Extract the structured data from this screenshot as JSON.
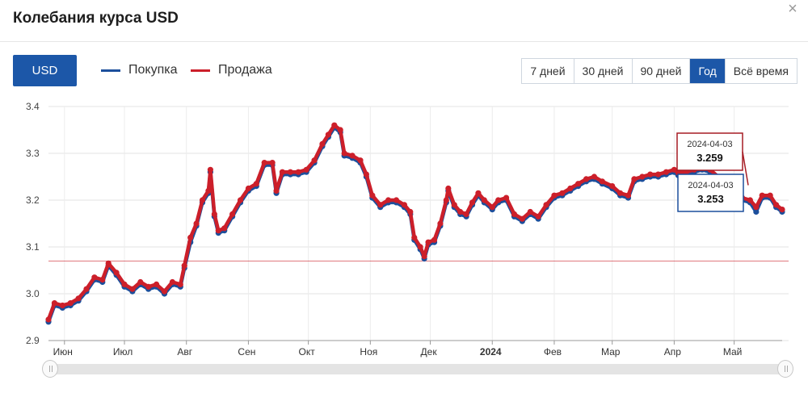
{
  "header": {
    "title": "Колебания курса USD"
  },
  "controls": {
    "currency_label": "USD",
    "legend": [
      {
        "label": "Покупка",
        "color": "#1c4f9c"
      },
      {
        "label": "Продажа",
        "color": "#cc1f2a"
      }
    ],
    "periods": [
      {
        "label": "7 дней",
        "active": false
      },
      {
        "label": "30 дней",
        "active": false
      },
      {
        "label": "90 дней",
        "active": false
      },
      {
        "label": "Год",
        "active": true
      },
      {
        "label": "Всё время",
        "active": false
      }
    ]
  },
  "chart_data": {
    "type": "line",
    "x_range": [
      "2023-05-24",
      "2024-05-25"
    ],
    "ylim": [
      2.9,
      3.4
    ],
    "y_ticks": [
      "2.9",
      "3.0",
      "3.1",
      "3.2",
      "3.3",
      "3.4"
    ],
    "x_ticks": [
      {
        "label": "Июн",
        "date": "2023-06-01",
        "bold": false
      },
      {
        "label": "Июл",
        "date": "2023-07-01",
        "bold": false
      },
      {
        "label": "Авг",
        "date": "2023-08-01",
        "bold": false
      },
      {
        "label": "Сен",
        "date": "2023-09-01",
        "bold": false
      },
      {
        "label": "Окт",
        "date": "2023-10-01",
        "bold": false
      },
      {
        "label": "Ноя",
        "date": "2023-11-01",
        "bold": false
      },
      {
        "label": "Дек",
        "date": "2023-12-01",
        "bold": false
      },
      {
        "label": "2024",
        "date": "2024-01-01",
        "bold": true
      },
      {
        "label": "Фев",
        "date": "2024-02-01",
        "bold": false
      },
      {
        "label": "Мар",
        "date": "2024-03-01",
        "bold": false
      },
      {
        "label": "Апр",
        "date": "2024-04-01",
        "bold": false
      },
      {
        "label": "Май",
        "date": "2024-05-01",
        "bold": false
      }
    ],
    "reference_line": {
      "y": 3.07,
      "color": "#cc1f2a"
    },
    "series": [
      {
        "name": "Продажа",
        "color": "#cc1f2a",
        "points": [
          [
            "2023-05-24",
            2.945
          ],
          [
            "2023-05-27",
            2.98
          ],
          [
            "2023-05-31",
            2.975
          ],
          [
            "2023-06-04",
            2.98
          ],
          [
            "2023-06-08",
            2.99
          ],
          [
            "2023-06-12",
            3.01
          ],
          [
            "2023-06-16",
            3.035
          ],
          [
            "2023-06-20",
            3.03
          ],
          [
            "2023-06-23",
            3.065
          ],
          [
            "2023-06-27",
            3.045
          ],
          [
            "2023-07-01",
            3.02
          ],
          [
            "2023-07-05",
            3.01
          ],
          [
            "2023-07-09",
            3.025
          ],
          [
            "2023-07-13",
            3.015
          ],
          [
            "2023-07-17",
            3.02
          ],
          [
            "2023-07-21",
            3.005
          ],
          [
            "2023-07-25",
            3.025
          ],
          [
            "2023-07-29",
            3.02
          ],
          [
            "2023-07-31",
            3.06
          ],
          [
            "2023-08-03",
            3.12
          ],
          [
            "2023-08-06",
            3.15
          ],
          [
            "2023-08-09",
            3.2
          ],
          [
            "2023-08-12",
            3.22
          ],
          [
            "2023-08-13",
            3.265
          ],
          [
            "2023-08-15",
            3.17
          ],
          [
            "2023-08-17",
            3.135
          ],
          [
            "2023-08-20",
            3.14
          ],
          [
            "2023-08-24",
            3.17
          ],
          [
            "2023-08-28",
            3.2
          ],
          [
            "2023-09-01",
            3.225
          ],
          [
            "2023-09-05",
            3.235
          ],
          [
            "2023-09-09",
            3.28
          ],
          [
            "2023-09-13",
            3.28
          ],
          [
            "2023-09-15",
            3.22
          ],
          [
            "2023-09-18",
            3.26
          ],
          [
            "2023-09-22",
            3.26
          ],
          [
            "2023-09-26",
            3.26
          ],
          [
            "2023-09-30",
            3.265
          ],
          [
            "2023-10-04",
            3.285
          ],
          [
            "2023-10-08",
            3.32
          ],
          [
            "2023-10-11",
            3.34
          ],
          [
            "2023-10-14",
            3.36
          ],
          [
            "2023-10-17",
            3.35
          ],
          [
            "2023-10-19",
            3.3
          ],
          [
            "2023-10-23",
            3.295
          ],
          [
            "2023-10-27",
            3.285
          ],
          [
            "2023-10-30",
            3.255
          ],
          [
            "2023-11-02",
            3.21
          ],
          [
            "2023-11-06",
            3.19
          ],
          [
            "2023-11-10",
            3.2
          ],
          [
            "2023-11-14",
            3.2
          ],
          [
            "2023-11-18",
            3.19
          ],
          [
            "2023-11-21",
            3.175
          ],
          [
            "2023-11-23",
            3.12
          ],
          [
            "2023-11-26",
            3.1
          ],
          [
            "2023-11-28",
            3.08
          ],
          [
            "2023-11-30",
            3.11
          ],
          [
            "2023-12-03",
            3.115
          ],
          [
            "2023-12-06",
            3.15
          ],
          [
            "2023-12-09",
            3.2
          ],
          [
            "2023-12-10",
            3.225
          ],
          [
            "2023-12-13",
            3.19
          ],
          [
            "2023-12-16",
            3.175
          ],
          [
            "2023-12-19",
            3.17
          ],
          [
            "2023-12-22",
            3.195
          ],
          [
            "2023-12-25",
            3.215
          ],
          [
            "2023-12-28",
            3.2
          ],
          [
            "2024-01-01",
            3.185
          ],
          [
            "2024-01-04",
            3.2
          ],
          [
            "2024-01-08",
            3.205
          ],
          [
            "2024-01-12",
            3.17
          ],
          [
            "2024-01-16",
            3.16
          ],
          [
            "2024-01-20",
            3.175
          ],
          [
            "2024-01-24",
            3.165
          ],
          [
            "2024-01-28",
            3.19
          ],
          [
            "2024-02-01",
            3.21
          ],
          [
            "2024-02-05",
            3.215
          ],
          [
            "2024-02-09",
            3.225
          ],
          [
            "2024-02-13",
            3.235
          ],
          [
            "2024-02-17",
            3.245
          ],
          [
            "2024-02-21",
            3.25
          ],
          [
            "2024-02-25",
            3.24
          ],
          [
            "2024-03-01",
            3.23
          ],
          [
            "2024-03-05",
            3.215
          ],
          [
            "2024-03-09",
            3.21
          ],
          [
            "2024-03-12",
            3.245
          ],
          [
            "2024-03-16",
            3.25
          ],
          [
            "2024-03-20",
            3.255
          ],
          [
            "2024-03-24",
            3.255
          ],
          [
            "2024-03-28",
            3.26
          ],
          [
            "2024-04-01",
            3.265
          ],
          [
            "2024-04-03",
            3.259
          ],
          [
            "2024-04-07",
            3.26
          ],
          [
            "2024-04-11",
            3.265
          ],
          [
            "2024-04-15",
            3.27
          ],
          [
            "2024-04-19",
            3.265
          ],
          [
            "2024-04-23",
            3.25
          ],
          [
            "2024-04-27",
            3.23
          ],
          [
            "2024-05-01",
            3.22
          ],
          [
            "2024-05-05",
            3.205
          ],
          [
            "2024-05-09",
            3.2
          ],
          [
            "2024-05-12",
            3.185
          ],
          [
            "2024-05-15",
            3.21
          ],
          [
            "2024-05-19",
            3.21
          ],
          [
            "2024-05-22",
            3.19
          ],
          [
            "2024-05-25",
            3.18
          ]
        ]
      },
      {
        "name": "Покупка",
        "color": "#1c4f9c",
        "points": [
          [
            "2023-05-24",
            2.94
          ],
          [
            "2023-05-27",
            2.975
          ],
          [
            "2023-05-31",
            2.97
          ],
          [
            "2023-06-04",
            2.975
          ],
          [
            "2023-06-08",
            2.985
          ],
          [
            "2023-06-12",
            3.005
          ],
          [
            "2023-06-16",
            3.03
          ],
          [
            "2023-06-20",
            3.025
          ],
          [
            "2023-06-23",
            3.06
          ],
          [
            "2023-06-27",
            3.04
          ],
          [
            "2023-07-01",
            3.015
          ],
          [
            "2023-07-05",
            3.005
          ],
          [
            "2023-07-09",
            3.02
          ],
          [
            "2023-07-13",
            3.01
          ],
          [
            "2023-07-17",
            3.015
          ],
          [
            "2023-07-21",
            3.0
          ],
          [
            "2023-07-25",
            3.02
          ],
          [
            "2023-07-29",
            3.015
          ],
          [
            "2023-07-31",
            3.055
          ],
          [
            "2023-08-03",
            3.11
          ],
          [
            "2023-08-06",
            3.145
          ],
          [
            "2023-08-09",
            3.195
          ],
          [
            "2023-08-12",
            3.215
          ],
          [
            "2023-08-13",
            3.26
          ],
          [
            "2023-08-15",
            3.165
          ],
          [
            "2023-08-17",
            3.13
          ],
          [
            "2023-08-20",
            3.135
          ],
          [
            "2023-08-24",
            3.165
          ],
          [
            "2023-08-28",
            3.195
          ],
          [
            "2023-09-01",
            3.22
          ],
          [
            "2023-09-05",
            3.23
          ],
          [
            "2023-09-09",
            3.275
          ],
          [
            "2023-09-13",
            3.275
          ],
          [
            "2023-09-15",
            3.215
          ],
          [
            "2023-09-18",
            3.255
          ],
          [
            "2023-09-22",
            3.255
          ],
          [
            "2023-09-26",
            3.255
          ],
          [
            "2023-09-30",
            3.26
          ],
          [
            "2023-10-04",
            3.28
          ],
          [
            "2023-10-08",
            3.315
          ],
          [
            "2023-10-11",
            3.335
          ],
          [
            "2023-10-14",
            3.355
          ],
          [
            "2023-10-17",
            3.345
          ],
          [
            "2023-10-19",
            3.295
          ],
          [
            "2023-10-23",
            3.29
          ],
          [
            "2023-10-27",
            3.28
          ],
          [
            "2023-10-30",
            3.25
          ],
          [
            "2023-11-02",
            3.205
          ],
          [
            "2023-11-06",
            3.185
          ],
          [
            "2023-11-10",
            3.195
          ],
          [
            "2023-11-14",
            3.195
          ],
          [
            "2023-11-18",
            3.185
          ],
          [
            "2023-11-21",
            3.17
          ],
          [
            "2023-11-23",
            3.115
          ],
          [
            "2023-11-26",
            3.095
          ],
          [
            "2023-11-28",
            3.075
          ],
          [
            "2023-11-30",
            3.105
          ],
          [
            "2023-12-03",
            3.11
          ],
          [
            "2023-12-06",
            3.145
          ],
          [
            "2023-12-09",
            3.195
          ],
          [
            "2023-12-10",
            3.22
          ],
          [
            "2023-12-13",
            3.185
          ],
          [
            "2023-12-16",
            3.17
          ],
          [
            "2023-12-19",
            3.165
          ],
          [
            "2023-12-22",
            3.19
          ],
          [
            "2023-12-25",
            3.21
          ],
          [
            "2023-12-28",
            3.195
          ],
          [
            "2024-01-01",
            3.18
          ],
          [
            "2024-01-04",
            3.195
          ],
          [
            "2024-01-08",
            3.2
          ],
          [
            "2024-01-12",
            3.165
          ],
          [
            "2024-01-16",
            3.155
          ],
          [
            "2024-01-20",
            3.17
          ],
          [
            "2024-01-24",
            3.16
          ],
          [
            "2024-01-28",
            3.185
          ],
          [
            "2024-02-01",
            3.205
          ],
          [
            "2024-02-05",
            3.21
          ],
          [
            "2024-02-09",
            3.22
          ],
          [
            "2024-02-13",
            3.23
          ],
          [
            "2024-02-17",
            3.24
          ],
          [
            "2024-02-21",
            3.245
          ],
          [
            "2024-02-25",
            3.235
          ],
          [
            "2024-03-01",
            3.225
          ],
          [
            "2024-03-05",
            3.21
          ],
          [
            "2024-03-09",
            3.205
          ],
          [
            "2024-03-12",
            3.24
          ],
          [
            "2024-03-16",
            3.245
          ],
          [
            "2024-03-20",
            3.25
          ],
          [
            "2024-03-24",
            3.25
          ],
          [
            "2024-03-28",
            3.255
          ],
          [
            "2024-04-01",
            3.26
          ],
          [
            "2024-04-03",
            3.253
          ],
          [
            "2024-04-07",
            3.255
          ],
          [
            "2024-04-11",
            3.26
          ],
          [
            "2024-04-15",
            3.265
          ],
          [
            "2024-04-19",
            3.26
          ],
          [
            "2024-04-23",
            3.245
          ],
          [
            "2024-04-27",
            3.225
          ],
          [
            "2024-05-01",
            3.215
          ],
          [
            "2024-05-05",
            3.2
          ],
          [
            "2024-05-09",
            3.195
          ],
          [
            "2024-05-12",
            3.175
          ],
          [
            "2024-05-15",
            3.205
          ],
          [
            "2024-05-19",
            3.205
          ],
          [
            "2024-05-22",
            3.185
          ],
          [
            "2024-05-25",
            3.175
          ]
        ]
      }
    ],
    "tooltips": [
      {
        "date": "2024-04-03",
        "value": "3.259",
        "color": "#a51c24"
      },
      {
        "date": "2024-04-03",
        "value": "3.253",
        "color": "#1c4f9c"
      }
    ]
  }
}
